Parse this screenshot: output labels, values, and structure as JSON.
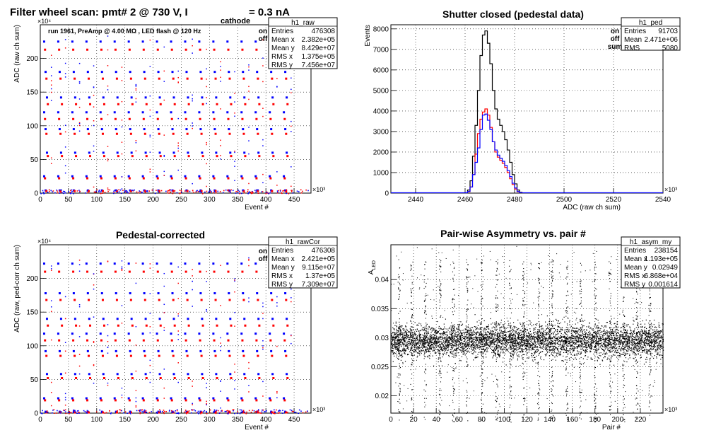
{
  "colors": {
    "on": "#0000ff",
    "off": "#ff0000",
    "sum": "#000000",
    "grid": "#000000"
  },
  "main_title": {
    "text": "Filter wheel scan: pmt#   2 @   730 V, I",
    "sub": "cathode",
    "tail": " = 0.3 nA"
  },
  "panels": {
    "raw": {
      "title_note": "run 1961, PreAmp @ 4.00 MΩ , LED flash @  120 Hz",
      "legend": [
        {
          "label": "on",
          "color": "#0000ff"
        },
        {
          "label": "off",
          "color": "#ff0000"
        }
      ],
      "stats": {
        "name": "h1_raw",
        "rows": [
          [
            "Entries",
            "476308"
          ],
          [
            "Mean x",
            "2.382e+05"
          ],
          [
            "Mean y",
            "8.429e+07"
          ],
          [
            "RMS x",
            "1.375e+05"
          ],
          [
            "RMS y",
            "7.456e+07"
          ]
        ]
      }
    },
    "ped": {
      "title": "Shutter closed (pedestal data)",
      "legend": [
        {
          "label": "on",
          "color": "#0000ff"
        },
        {
          "label": "off",
          "color": "#ff0000"
        },
        {
          "label": "sum",
          "color": "#000000"
        }
      ],
      "stats": {
        "name": "h1_ped",
        "rows": [
          [
            "Entries",
            "91703"
          ],
          [
            "Mean",
            "2.471e+06"
          ],
          [
            "RMS",
            "5080"
          ]
        ]
      }
    },
    "cor": {
      "title": "Pedestal-corrected",
      "legend": [
        {
          "label": "on",
          "color": "#0000ff"
        },
        {
          "label": "off",
          "color": "#ff0000"
        }
      ],
      "stats": {
        "name": "h1_rawCor",
        "rows": [
          [
            "Entries",
            "476308"
          ],
          [
            "Mean x",
            "2.421e+05"
          ],
          [
            "Mean y",
            "9.115e+07"
          ],
          [
            "RMS x",
            "1.37e+05"
          ],
          [
            "RMS y",
            "7.309e+07"
          ]
        ]
      }
    },
    "asym": {
      "title": "Pair-wise Asymmetry vs. pair #",
      "stats": {
        "name": "h1_asym_my",
        "rows": [
          [
            "Entries",
            "238154"
          ],
          [
            "Mean x",
            "1.193e+05"
          ],
          [
            "Mean y",
            "0.02949"
          ],
          [
            "RMS x",
            "6.868e+04"
          ],
          [
            "RMS y",
            "0.001614"
          ]
        ]
      }
    }
  },
  "chart_data": [
    {
      "id": "raw",
      "type": "scatter",
      "xlabel": "Event #",
      "ylabel": "ADC (raw ch sum)",
      "xlim": [
        0,
        480
      ],
      "ylim": [
        0,
        250
      ],
      "x_multiplier": "×10³",
      "y_multiplier": "×10⁴",
      "xticks": [
        0,
        50,
        100,
        150,
        200,
        250,
        300,
        350,
        400,
        450
      ],
      "yticks": [
        0,
        50,
        100,
        150,
        200
      ],
      "grid": true,
      "levels": [
        {
          "on": 225,
          "off": 213
        },
        {
          "on": 180,
          "off": 170
        },
        {
          "on": 142,
          "off": 132
        },
        {
          "on": 120,
          "off": 110
        },
        {
          "on": 95,
          "off": 88
        },
        {
          "on": 60,
          "off": 55
        },
        {
          "on": 25,
          "off": 22
        },
        {
          "on": 4,
          "off": 3
        }
      ],
      "cycles": 18,
      "series": [
        {
          "name": "on",
          "color": "#0000ff"
        },
        {
          "name": "off",
          "color": "#ff0000"
        }
      ]
    },
    {
      "id": "ped",
      "type": "histogram",
      "xlabel": "ADC (raw ch sum)",
      "ylabel": "Events",
      "xlim": [
        2430,
        2540
      ],
      "ylim": [
        0,
        8200
      ],
      "x_multiplier": "×10³",
      "xticks": [
        2440,
        2460,
        2480,
        2500,
        2520,
        2540
      ],
      "yticks": [
        0,
        1000,
        2000,
        3000,
        4000,
        5000,
        6000,
        7000,
        8000
      ],
      "grid": true,
      "bins": [
        2461,
        2462,
        2463,
        2464,
        2465,
        2466,
        2467,
        2468,
        2469,
        2470,
        2471,
        2472,
        2473,
        2474,
        2475,
        2476,
        2477,
        2478,
        2479,
        2480,
        2481,
        2482
      ],
      "series": [
        {
          "name": "sum",
          "color": "#000000",
          "values": [
            150,
            600,
            1800,
            3300,
            5000,
            6700,
            7700,
            7900,
            7300,
            6300,
            5000,
            4100,
            3600,
            3300,
            3000,
            2600,
            2100,
            1500,
            900,
            450,
            150,
            40
          ]
        },
        {
          "name": "off",
          "color": "#ff0000",
          "values": [
            70,
            300,
            900,
            1900,
            2900,
            3600,
            3950,
            4100,
            3800,
            3200,
            2500,
            2000,
            1750,
            1600,
            1450,
            1250,
            1000,
            700,
            420,
            200,
            70,
            20
          ]
        },
        {
          "name": "on",
          "color": "#0000ff",
          "values": [
            80,
            300,
            900,
            1500,
            2200,
            3100,
            3800,
            3850,
            3550,
            3100,
            2500,
            2100,
            1850,
            1700,
            1550,
            1350,
            1100,
            800,
            480,
            250,
            80,
            20
          ]
        }
      ]
    },
    {
      "id": "cor",
      "type": "scatter",
      "xlabel": "Event #",
      "ylabel": "ADC (raw, ped-corr ch sum)",
      "xlim": [
        0,
        480
      ],
      "ylim": [
        0,
        250
      ],
      "x_multiplier": "×10³",
      "y_multiplier": "×10⁴",
      "xticks": [
        0,
        50,
        100,
        150,
        200,
        250,
        300,
        350,
        400,
        450
      ],
      "yticks": [
        0,
        50,
        100,
        150,
        200
      ],
      "grid": true,
      "levels": [
        {
          "on": 222,
          "off": 210
        },
        {
          "on": 178,
          "off": 168
        },
        {
          "on": 140,
          "off": 130
        },
        {
          "on": 118,
          "off": 108
        },
        {
          "on": 92,
          "off": 85
        },
        {
          "on": 58,
          "off": 52
        },
        {
          "on": 22,
          "off": 19
        },
        {
          "on": 2,
          "off": 1
        }
      ],
      "cycles": 18,
      "series": [
        {
          "name": "on",
          "color": "#0000ff"
        },
        {
          "name": "off",
          "color": "#ff0000"
        }
      ]
    },
    {
      "id": "asym",
      "type": "scatter",
      "xlabel": "Pair #",
      "ylabel": "A_LED",
      "xlim": [
        0,
        240
      ],
      "ylim": [
        0.017,
        0.046
      ],
      "x_multiplier": "×10³",
      "xticks": [
        0,
        20,
        40,
        60,
        80,
        100,
        120,
        140,
        160,
        180,
        200,
        220
      ],
      "yticks": [
        0.02,
        0.025,
        0.03,
        0.035,
        0.04
      ],
      "grid": true,
      "band_center": 0.0295,
      "band_halfwidth": 0.0025,
      "spike_x": [
        7,
        18,
        30,
        43,
        55,
        67,
        80,
        93,
        105,
        117,
        130,
        142,
        155,
        167,
        180,
        193,
        205,
        217,
        228
      ],
      "series": [
        {
          "name": "asym",
          "color": "#000000"
        }
      ]
    }
  ]
}
